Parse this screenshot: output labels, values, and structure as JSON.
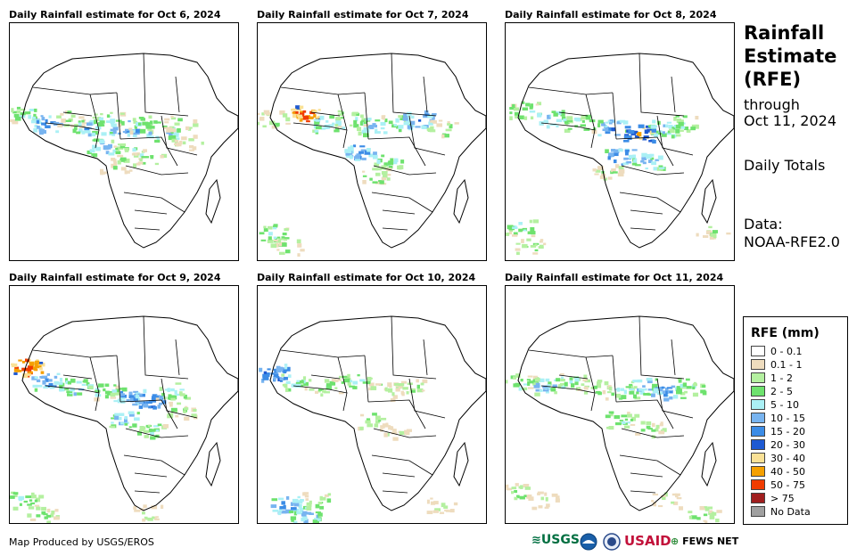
{
  "panels": [
    {
      "title": "Daily Rainfall estimate for Oct 6, 2024",
      "cells": [
        [
          0.06,
          0.38,
          4
        ],
        [
          0.16,
          0.42,
          6
        ],
        [
          0.26,
          0.4,
          3
        ],
        [
          0.34,
          0.44,
          5
        ],
        [
          0.42,
          0.4,
          4
        ],
        [
          0.5,
          0.44,
          6
        ],
        [
          0.58,
          0.42,
          4
        ],
        [
          0.66,
          0.46,
          5
        ],
        [
          0.74,
          0.42,
          3
        ],
        [
          0.4,
          0.52,
          5
        ],
        [
          0.52,
          0.54,
          4
        ],
        [
          0.6,
          0.56,
          3
        ],
        [
          0.78,
          0.5,
          2
        ],
        [
          0.46,
          0.6,
          2
        ]
      ]
    },
    {
      "title": "Daily Rainfall estimate for Oct 7, 2024",
      "cells": [
        [
          0.06,
          0.4,
          3
        ],
        [
          0.2,
          0.38,
          10
        ],
        [
          0.3,
          0.42,
          5
        ],
        [
          0.4,
          0.4,
          4
        ],
        [
          0.5,
          0.43,
          5
        ],
        [
          0.6,
          0.42,
          4
        ],
        [
          0.7,
          0.4,
          6
        ],
        [
          0.8,
          0.44,
          3
        ],
        [
          0.44,
          0.54,
          6
        ],
        [
          0.56,
          0.58,
          4
        ],
        [
          0.5,
          0.64,
          3
        ],
        [
          0.06,
          0.88,
          4
        ],
        [
          0.12,
          0.94,
          3
        ]
      ]
    },
    {
      "title": "Daily Rainfall estimate for Oct 8, 2024",
      "cells": [
        [
          0.08,
          0.36,
          4
        ],
        [
          0.2,
          0.4,
          5
        ],
        [
          0.32,
          0.42,
          4
        ],
        [
          0.46,
          0.44,
          6
        ],
        [
          0.58,
          0.46,
          8
        ],
        [
          0.68,
          0.44,
          5
        ],
        [
          0.78,
          0.42,
          4
        ],
        [
          0.5,
          0.56,
          6
        ],
        [
          0.62,
          0.58,
          5
        ],
        [
          0.44,
          0.62,
          3
        ],
        [
          0.06,
          0.86,
          4
        ],
        [
          0.1,
          0.94,
          3
        ],
        [
          0.9,
          0.88,
          2
        ]
      ]
    },
    {
      "title": "Daily Rainfall estimate for Oct 9, 2024",
      "cells": [
        [
          0.07,
          0.34,
          10
        ],
        [
          0.16,
          0.4,
          6
        ],
        [
          0.28,
          0.42,
          5
        ],
        [
          0.4,
          0.44,
          4
        ],
        [
          0.52,
          0.46,
          6
        ],
        [
          0.6,
          0.48,
          7
        ],
        [
          0.7,
          0.44,
          4
        ],
        [
          0.5,
          0.56,
          5
        ],
        [
          0.62,
          0.6,
          4
        ],
        [
          0.74,
          0.52,
          3
        ],
        [
          0.06,
          0.9,
          4
        ],
        [
          0.14,
          0.96,
          3
        ],
        [
          0.6,
          0.95,
          2
        ]
      ]
    },
    {
      "title": "Daily Rainfall estimate for Oct 10, 2024",
      "cells": [
        [
          0.06,
          0.36,
          7
        ],
        [
          0.16,
          0.4,
          4
        ],
        [
          0.3,
          0.42,
          3
        ],
        [
          0.42,
          0.4,
          4
        ],
        [
          0.54,
          0.44,
          3
        ],
        [
          0.66,
          0.42,
          3
        ],
        [
          0.5,
          0.56,
          3
        ],
        [
          0.6,
          0.62,
          2
        ],
        [
          0.12,
          0.92,
          6
        ],
        [
          0.2,
          0.96,
          5
        ],
        [
          0.26,
          0.9,
          3
        ],
        [
          0.8,
          0.92,
          2
        ]
      ]
    },
    {
      "title": "Daily Rainfall estimate for Oct 11, 2024",
      "cells": [
        [
          0.06,
          0.4,
          4
        ],
        [
          0.16,
          0.42,
          5
        ],
        [
          0.28,
          0.4,
          4
        ],
        [
          0.38,
          0.42,
          3
        ],
        [
          0.5,
          0.44,
          4
        ],
        [
          0.6,
          0.42,
          5
        ],
        [
          0.7,
          0.44,
          6
        ],
        [
          0.8,
          0.42,
          4
        ],
        [
          0.5,
          0.56,
          4
        ],
        [
          0.62,
          0.6,
          3
        ],
        [
          0.06,
          0.86,
          3
        ],
        [
          0.16,
          0.9,
          2
        ],
        [
          0.7,
          0.9,
          2
        ],
        [
          0.86,
          0.96,
          3
        ]
      ]
    }
  ],
  "side": {
    "title1": "Rainfall",
    "title2": "Estimate",
    "title3": "(RFE)",
    "through": "through",
    "date": "Oct 11, 2024",
    "totals": "Daily Totals",
    "data_label": "Data:",
    "data_source": "NOAA-RFE2.0"
  },
  "legend": {
    "title": "RFE (mm)",
    "items": [
      {
        "label": "0 - 0.1",
        "color": "#ffffff"
      },
      {
        "label": "0.1 - 1",
        "color": "#eedcbe"
      },
      {
        "label": "1 - 2",
        "color": "#b4f0a0"
      },
      {
        "label": "2 - 5",
        "color": "#6ee26e"
      },
      {
        "label": "5 - 10",
        "color": "#aaf0f5"
      },
      {
        "label": "10 - 15",
        "color": "#78b4f0"
      },
      {
        "label": "15 - 20",
        "color": "#3c8ce6"
      },
      {
        "label": "20 - 30",
        "color": "#1e5ad2"
      },
      {
        "label": "30 - 40",
        "color": "#fae196"
      },
      {
        "label": "40 - 50",
        "color": "#f5a000"
      },
      {
        "label": "50 - 75",
        "color": "#f03c00"
      },
      {
        "label": "> 75",
        "color": "#a01e1e"
      },
      {
        "label": "No Data",
        "color": "#a0a0a0"
      }
    ]
  },
  "footer": {
    "credit": "Map Produced by USGS/EROS"
  },
  "logos": {
    "usgs": "USGS",
    "usaid": "USAID",
    "fewsnet": "FEWS NET",
    "usgs_color": "#006f41",
    "usaid_color": "#c2113a"
  }
}
